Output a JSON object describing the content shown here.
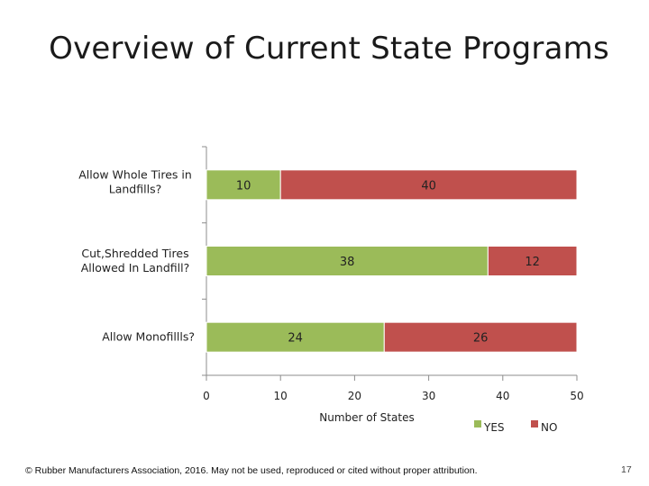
{
  "slide": {
    "title": "Overview of Current State Programs",
    "footer": "© Rubber Manufacturers Association, 2016.  May not be used, reproduced or cited without proper attribution.",
    "page_number": "17"
  },
  "chart_data": {
    "type": "bar",
    "orientation": "horizontal",
    "stacked": true,
    "title": "",
    "xlabel": "Number of States",
    "ylabel": "",
    "xlim": [
      0,
      50
    ],
    "xticks": [
      0,
      10,
      20,
      30,
      40,
      50
    ],
    "grid": false,
    "legend_position": "bottom-right",
    "categories": [
      [
        "Allow Whole Tires in",
        "Landfills?"
      ],
      [
        "Cut,Shredded Tires",
        "Allowed In Landfill?"
      ],
      [
        "Allow Monofillls?"
      ]
    ],
    "series": [
      {
        "name": "YES",
        "color": "#9bbb59",
        "values": [
          10,
          38,
          24
        ]
      },
      {
        "name": "NO",
        "color": "#c0504d",
        "values": [
          40,
          12,
          26
        ]
      }
    ]
  }
}
